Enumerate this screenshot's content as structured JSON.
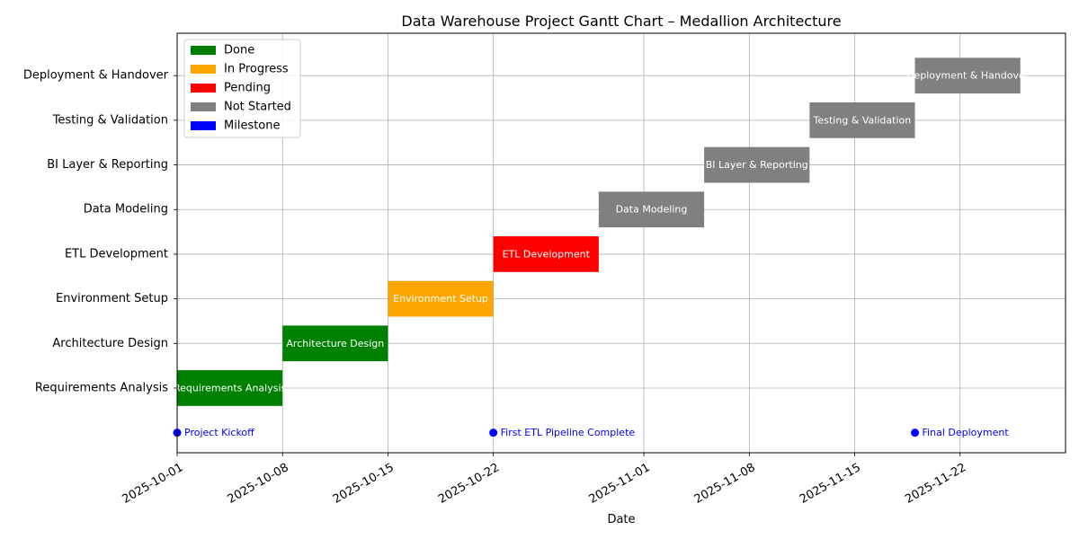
{
  "chart_data": {
    "type": "gantt",
    "title": "Data Warehouse Project Gantt Chart – Medallion Architecture",
    "xlabel": "Date",
    "ylabel": "",
    "xlim": [
      "2025-10-01",
      "2025-11-29"
    ],
    "x_ticks": [
      "2025-10-01",
      "2025-10-08",
      "2025-10-15",
      "2025-10-22",
      "2025-11-01",
      "2025-11-08",
      "2025-11-15",
      "2025-11-22"
    ],
    "grid": true,
    "legend_position": "top-left",
    "legend": [
      {
        "label": "Done",
        "color": "#008000"
      },
      {
        "label": "In Progress",
        "color": "#ffa500"
      },
      {
        "label": "Pending",
        "color": "#ff0000"
      },
      {
        "label": "Not Started",
        "color": "#808080"
      },
      {
        "label": "Milestone",
        "color": "#0000ff"
      }
    ],
    "tasks": [
      {
        "name": "Requirements Analysis",
        "start": "2025-10-01",
        "end": "2025-10-08",
        "status": "Done",
        "color": "#008000"
      },
      {
        "name": "Architecture Design",
        "start": "2025-10-08",
        "end": "2025-10-15",
        "status": "Done",
        "color": "#008000"
      },
      {
        "name": "Environment Setup",
        "start": "2025-10-15",
        "end": "2025-10-22",
        "status": "In Progress",
        "color": "#ffa500"
      },
      {
        "name": "ETL Development",
        "start": "2025-10-22",
        "end": "2025-10-29",
        "status": "Pending",
        "color": "#ff0000"
      },
      {
        "name": "Data Modeling",
        "start": "2025-10-29",
        "end": "2025-11-05",
        "status": "Not Started",
        "color": "#808080"
      },
      {
        "name": "BI Layer & Reporting",
        "start": "2025-11-05",
        "end": "2025-11-12",
        "status": "Not Started",
        "color": "#808080"
      },
      {
        "name": "Testing & Validation",
        "start": "2025-11-12",
        "end": "2025-11-19",
        "status": "Not Started",
        "color": "#808080"
      },
      {
        "name": "Deployment & Handover",
        "start": "2025-11-19",
        "end": "2025-11-26",
        "status": "Not Started",
        "color": "#808080"
      }
    ],
    "milestones": [
      {
        "name": "Project Kickoff",
        "date": "2025-10-01",
        "color": "#0000ff"
      },
      {
        "name": "First ETL Pipeline Complete",
        "date": "2025-10-22",
        "color": "#0000ff"
      },
      {
        "name": "Final Deployment",
        "date": "2025-11-19",
        "color": "#0000ff"
      }
    ]
  }
}
